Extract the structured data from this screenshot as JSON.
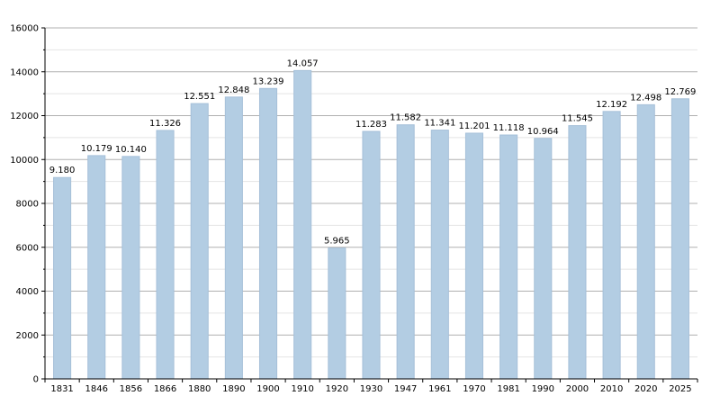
{
  "chart_data": {
    "type": "bar",
    "categories": [
      "1831",
      "1846",
      "1856",
      "1866",
      "1880",
      "1890",
      "1900",
      "1910",
      "1920",
      "1930",
      "1947",
      "1961",
      "1970",
      "1981",
      "1990",
      "2000",
      "2010",
      "2020",
      "2025"
    ],
    "values": [
      9180,
      10179,
      10140,
      11326,
      12551,
      12848,
      13239,
      14057,
      5965,
      11283,
      11582,
      11341,
      11201,
      11118,
      10964,
      11545,
      12192,
      12498,
      12769
    ],
    "data_labels": [
      "9.180",
      "10.179",
      "10.140",
      "11.326",
      "12.551",
      "12.848",
      "13.239",
      "14.057",
      "5.965",
      "11.283",
      "11.582",
      "11.341",
      "11.201",
      "11.118",
      "10.964",
      "11.545",
      "12.192",
      "12.498",
      "12.769"
    ],
    "y_ticks": [
      "0",
      "2000",
      "4000",
      "6000",
      "8000",
      "10000",
      "12000",
      "14000",
      "16000"
    ],
    "ylim": [
      0,
      16000
    ],
    "title": "",
    "xlabel": "",
    "ylabel": "",
    "grid": true,
    "colors": {
      "bar_fill": "#b3cde3",
      "bar_stroke": "#a6c0d9",
      "major_grid": "#b0b0b0",
      "minor_grid": "#e4e4e4",
      "axis": "#000000"
    }
  }
}
